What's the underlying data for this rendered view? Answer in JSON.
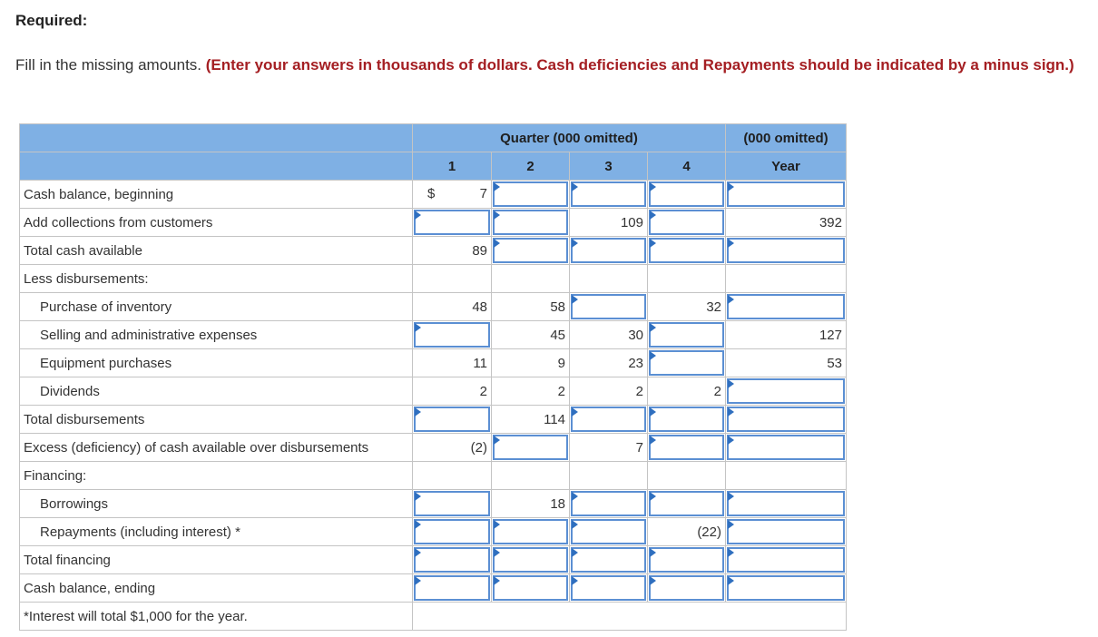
{
  "heading": "Required:",
  "instructions": {
    "prefix": "Fill in the missing amounts.",
    "emphasis": "(Enter your answers in thousands of dollars. Cash deficiencies and Repayments should be indicated by a minus sign.)"
  },
  "table": {
    "group_header_quarter": "Quarter (000 omitted)",
    "group_header_year": "(000 omitted)",
    "columns": [
      "1",
      "2",
      "3",
      "4",
      "Year"
    ],
    "currency_symbol": "$",
    "footnote": "*Interest will total $1,000 for the year.",
    "rows": [
      {
        "label": "Cash balance, beginning",
        "indent": false,
        "cells": [
          "7",
          "input",
          "input",
          "input",
          "input"
        ]
      },
      {
        "label": "Add collections from customers",
        "indent": false,
        "cells": [
          "input",
          "input",
          "109",
          "input",
          "392"
        ]
      },
      {
        "label": "Total cash available",
        "indent": false,
        "cells": [
          "89",
          "input",
          "input",
          "input",
          "input"
        ]
      },
      {
        "label": "Less disbursements:",
        "indent": false,
        "cells": [
          "",
          "",
          "",
          "",
          ""
        ]
      },
      {
        "label": "Purchase of inventory",
        "indent": true,
        "cells": [
          "48",
          "58",
          "input",
          "32",
          "input"
        ]
      },
      {
        "label": "Selling and administrative expenses",
        "indent": true,
        "cells": [
          "input",
          "45",
          "30",
          "input",
          "127"
        ]
      },
      {
        "label": "Equipment purchases",
        "indent": true,
        "cells": [
          "11",
          "9",
          "23",
          "input",
          "53"
        ]
      },
      {
        "label": "Dividends",
        "indent": true,
        "cells": [
          "2",
          "2",
          "2",
          "2",
          "input"
        ]
      },
      {
        "label": "Total disbursements",
        "indent": false,
        "cells": [
          "input",
          "114",
          "input",
          "input",
          "input"
        ]
      },
      {
        "label": "Excess (deficiency) of cash available over disbursements",
        "indent": false,
        "cells": [
          "(2)",
          "input",
          "7",
          "input",
          "input"
        ]
      },
      {
        "label": "Financing:",
        "indent": false,
        "cells": [
          "",
          "",
          "",
          "",
          ""
        ]
      },
      {
        "label": "Borrowings",
        "indent": true,
        "cells": [
          "input",
          "18",
          "input",
          "input",
          "input"
        ]
      },
      {
        "label": "Repayments (including interest) *",
        "indent": true,
        "cells": [
          "input",
          "input",
          "input",
          "(22)",
          "input"
        ]
      },
      {
        "label": "Total financing",
        "indent": false,
        "cells": [
          "input",
          "input",
          "input",
          "input",
          "input"
        ]
      },
      {
        "label": "Cash balance, ending",
        "indent": false,
        "cells": [
          "input",
          "input",
          "input",
          "input",
          "input"
        ]
      }
    ]
  },
  "colors": {
    "header_bg": "#7fb0e4",
    "emphasis_text": "#a41e22",
    "input_border": "#5b8fd3",
    "grid": "#c4c4c4"
  }
}
